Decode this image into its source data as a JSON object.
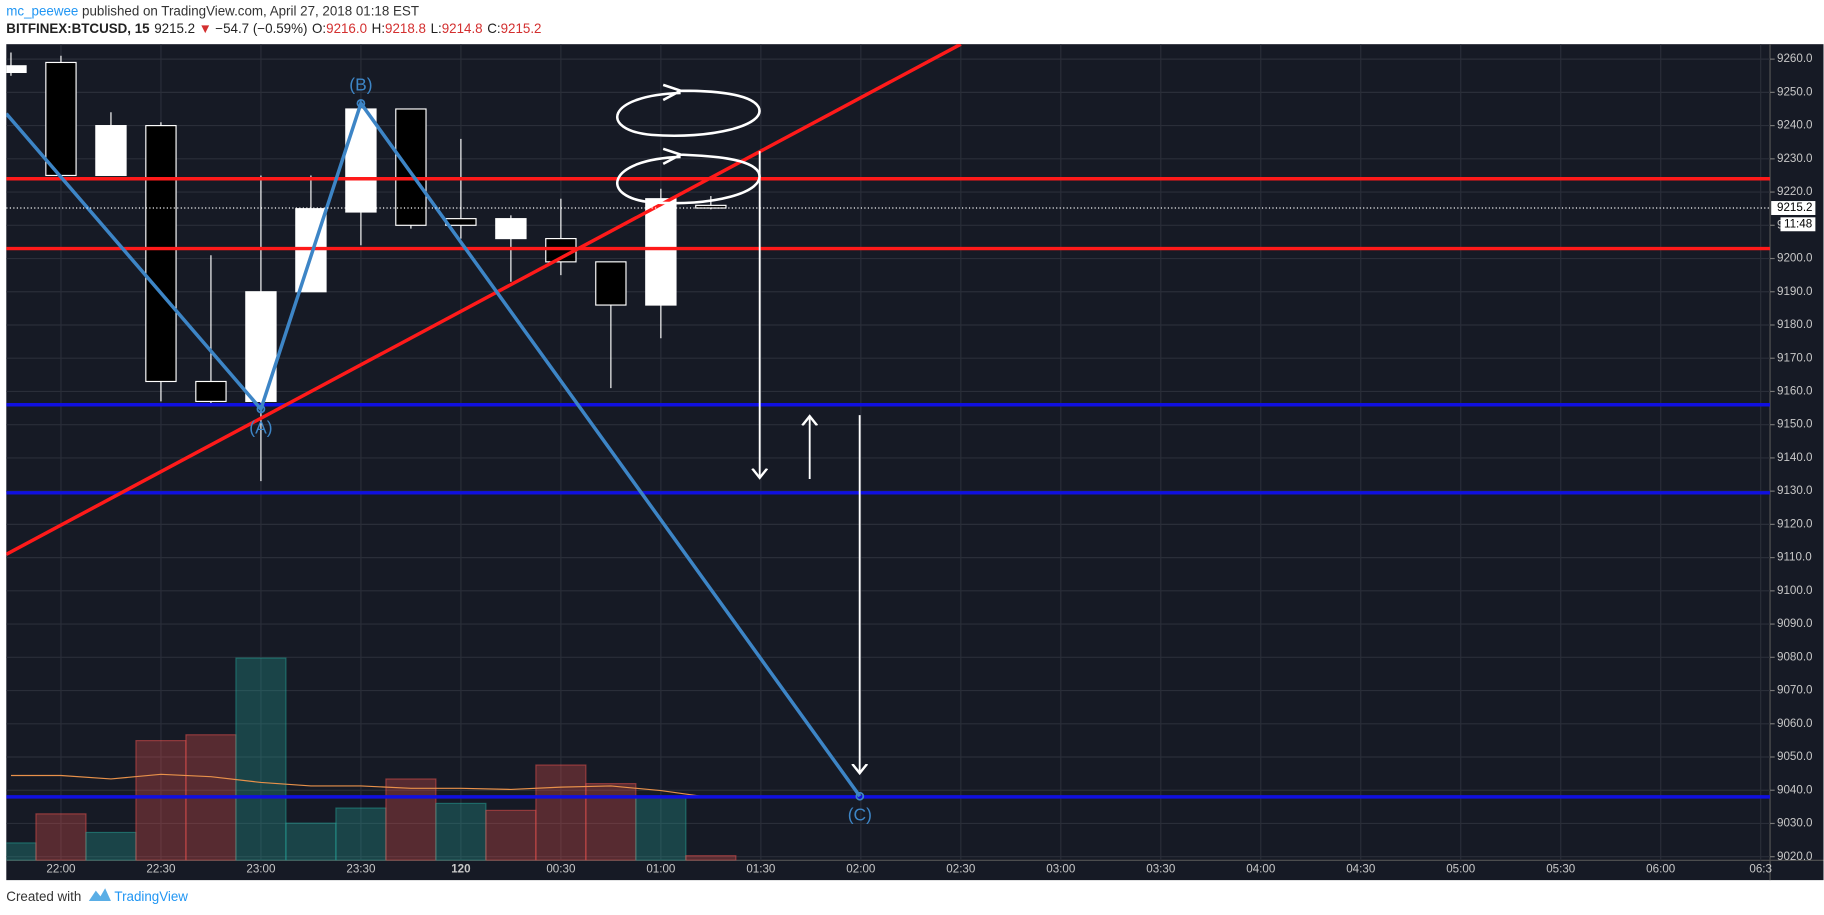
{
  "header": {
    "user": "mc_peewee",
    "published": " published on TradingView.com, April 27, 2018 01:18 EST",
    "symbol": "BITFINEX:BTCUSD, 15",
    "price": "9215.2",
    "arrow": "▼",
    "change": "−54.7 (−0.59%)",
    "o_label": "O:",
    "o": "9216.0",
    "h_label": "H:",
    "h": "9218.8",
    "l_label": "L:",
    "l": "9214.8",
    "c_label": "C:",
    "c": "9215.2"
  },
  "footer": {
    "created": "Created with",
    "brand": "TradingView"
  },
  "chart_data": {
    "type": "candlestick",
    "x": [
      -15,
      0,
      15,
      30,
      45,
      60,
      75,
      90,
      105,
      120,
      135,
      150,
      165,
      180,
      195
    ],
    "open": [
      9256,
      9259,
      9225,
      9240,
      9163,
      9157,
      9190,
      9214,
      9245,
      9212,
      9206,
      9206,
      9199,
      9186,
      9216
    ],
    "high": [
      9262,
      9261,
      9244,
      9241,
      9201,
      9225,
      9225,
      9247,
      9245,
      9236,
      9213,
      9218,
      9199,
      9221,
      9218.8
    ],
    "low": [
      9255,
      9225,
      9225,
      9157,
      9156,
      9133,
      9190,
      9204,
      9209,
      9206,
      9193,
      9195,
      9161,
      9176,
      9214.8
    ],
    "close": [
      9258,
      9225,
      9240,
      9163,
      9157,
      9190,
      9215,
      9245,
      9210,
      9210,
      9212,
      9199,
      9186,
      9218,
      9215.2
    ],
    "up_color": "#ffffff",
    "down_color": "#000000",
    "volume": [
      15,
      40,
      24,
      103,
      108,
      174,
      32,
      45,
      70,
      49,
      43,
      82,
      66,
      55,
      4
    ],
    "volume_colors": [
      "#26a69a",
      "#ef5350",
      "#26a69a",
      "#ef5350",
      "#ef5350",
      "#26a69a",
      "#26a69a",
      "#26a69a",
      "#ef5350",
      "#26a69a",
      "#ef5350",
      "#ef5350",
      "#ef5350",
      "#26a69a",
      "#ef5350"
    ],
    "volume_ma": [
      73,
      73,
      70,
      74,
      72,
      67,
      64,
      64,
      62,
      62,
      61,
      63,
      64,
      60,
      54
    ],
    "volume_ma_color": "#e8914a",
    "vlim": [
      0,
      250
    ],
    "xlim": [
      -16.4,
      512.8
    ],
    "xticks": [
      {
        "value": 0,
        "label": "22:00"
      },
      {
        "value": 30,
        "label": "22:30"
      },
      {
        "value": 60,
        "label": "23:00"
      },
      {
        "value": 90,
        "label": "23:30"
      },
      120,
      {
        "value": 150,
        "label": "00:30"
      },
      {
        "value": 180,
        "label": "01:00"
      },
      {
        "value": 210,
        "label": "01:30"
      },
      {
        "value": 240,
        "label": "02:00"
      },
      {
        "value": 270,
        "label": "02:30"
      },
      {
        "value": 300,
        "label": "03:00"
      },
      {
        "value": 330,
        "label": "03:30"
      },
      {
        "value": 360,
        "label": "04:00"
      },
      {
        "value": 390,
        "label": "04:30"
      },
      {
        "value": 420,
        "label": "05:00"
      },
      {
        "value": 450,
        "label": "05:30"
      },
      {
        "value": 480,
        "label": "06:00"
      },
      {
        "value": 510,
        "label": "06:3"
      }
    ],
    "ylim": [
      9018.9,
      9264.5
    ],
    "yticks": [
      {
        "value": 9020,
        "label": "9020.0"
      },
      {
        "value": 9030,
        "label": "9030.0"
      },
      {
        "value": 9040,
        "label": "9040.0"
      },
      {
        "value": 9050,
        "label": "9050.0"
      },
      {
        "value": 9060,
        "label": "9060.0"
      },
      {
        "value": 9070,
        "label": "9070.0"
      },
      {
        "value": 9080,
        "label": "9080.0"
      },
      {
        "value": 9090,
        "label": "9090.0"
      },
      {
        "value": 9100,
        "label": "9100.0"
      },
      {
        "value": 9110,
        "label": "9110.0"
      },
      {
        "value": 9120,
        "label": "9120.0"
      },
      {
        "value": 9130,
        "label": "9130.0"
      },
      {
        "value": 9140,
        "label": "9140.0"
      },
      {
        "value": 9150,
        "label": "9150.0"
      },
      {
        "value": 9160,
        "label": "9160.0"
      },
      {
        "value": 9170,
        "label": "9170.0"
      },
      {
        "value": 9180,
        "label": "9180.0"
      },
      {
        "value": 9190,
        "label": "9190.0"
      },
      {
        "value": 9200,
        "label": "9200.0"
      },
      {
        "value": 9210,
        "label": "9210.0"
      },
      {
        "value": 9220,
        "label": "9220.0"
      },
      {
        "value": 9230,
        "label": "9230.0"
      },
      {
        "value": 9240,
        "label": "9240.0"
      },
      {
        "value": 9250,
        "label": "9250.0"
      },
      {
        "value": 9260,
        "label": "9260.0"
      }
    ],
    "grid": true,
    "last_price": 9215.2,
    "countdown": "11:48",
    "hlines": [
      {
        "y": 9224,
        "color": "#ff1a1a"
      },
      {
        "y": 9203,
        "color": "#ff1a1a"
      },
      {
        "y": 9156,
        "color": "#1010e0"
      },
      {
        "y": 9129.5,
        "color": "#1010e0"
      },
      {
        "y": 9038,
        "color": "#1010e0"
      }
    ],
    "trendlines": [
      {
        "x": [
          -16.4,
          270
        ],
        "y": [
          9111,
          9264.5
        ],
        "color": "#ff1a1a"
      },
      {
        "x": [
          -16.4,
          60,
          90,
          239.7
        ],
        "y": [
          9243.6,
          9154.7,
          9246.7,
          9038.2
        ],
        "color": "#3d85c6"
      }
    ],
    "wave_labels": [
      "(A)",
      "(B)",
      "(C)"
    ]
  }
}
